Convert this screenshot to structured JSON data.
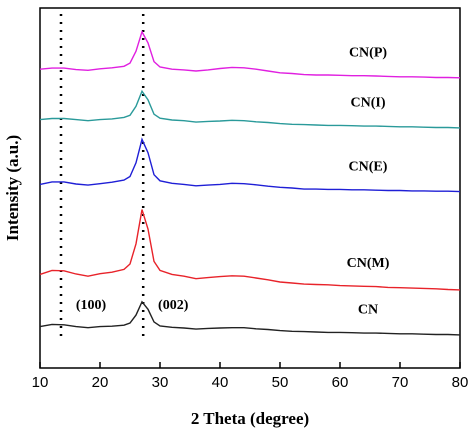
{
  "chart_data": {
    "type": "line",
    "xlabel": "2 Theta (degree)",
    "ylabel": "Intensity (a.u.)",
    "xlim": [
      10,
      80
    ],
    "xticks": [
      10,
      20,
      30,
      40,
      50,
      60,
      70,
      80
    ],
    "ylim": [
      0,
      100
    ],
    "x": [
      10,
      12,
      14,
      16,
      18,
      20,
      22,
      24,
      25,
      26,
      27,
      28,
      29,
      30,
      32,
      34,
      36,
      38,
      40,
      42,
      44,
      46,
      48,
      50,
      52,
      54,
      56,
      58,
      60,
      62,
      64,
      66,
      68,
      70,
      72,
      74,
      76,
      78,
      80
    ],
    "series": [
      {
        "name": "CN",
        "color": "#222222",
        "values": [
          11.5,
          12.1,
          12.0,
          11.5,
          11.2,
          11.5,
          11.6,
          11.9,
          12.5,
          14.7,
          18.4,
          16.3,
          12.8,
          11.7,
          11.3,
          11.1,
          10.8,
          11.0,
          11.1,
          11.2,
          11.2,
          10.9,
          10.7,
          10.4,
          10.2,
          10.1,
          10.0,
          9.9,
          9.9,
          9.8,
          9.7,
          9.7,
          9.6,
          9.5,
          9.5,
          9.4,
          9.3,
          9.3,
          9.2
        ]
      },
      {
        "name": "CN(M)",
        "color": "#e8232a",
        "values": [
          26.0,
          27.1,
          27.0,
          26.1,
          25.5,
          26.2,
          26.6,
          27.4,
          28.9,
          34.5,
          44.0,
          38.6,
          29.6,
          27.1,
          26.0,
          25.5,
          24.8,
          25.1,
          25.4,
          25.6,
          25.5,
          25.0,
          24.5,
          23.9,
          23.6,
          23.3,
          23.2,
          23.1,
          22.9,
          22.8,
          22.7,
          22.6,
          22.4,
          22.3,
          22.2,
          22.1,
          22.0,
          21.8,
          21.7
        ]
      },
      {
        "name": "CN(E)",
        "color": "#1f1fd6",
        "values": [
          51.0,
          51.7,
          51.7,
          51.1,
          50.8,
          51.2,
          51.6,
          52.2,
          53.2,
          57.0,
          63.5,
          59.8,
          53.7,
          52.0,
          51.3,
          51.0,
          50.6,
          50.8,
          51.0,
          51.3,
          51.2,
          50.9,
          50.5,
          50.2,
          50.0,
          49.7,
          49.7,
          49.6,
          49.6,
          49.5,
          49.5,
          49.4,
          49.3,
          49.3,
          49.2,
          49.2,
          49.1,
          49.1,
          49.0
        ]
      },
      {
        "name": "CN(I)",
        "color": "#2a9a9a",
        "values": [
          69.0,
          69.3,
          69.3,
          69.0,
          68.7,
          69.0,
          69.2,
          69.6,
          70.2,
          72.7,
          76.9,
          74.5,
          70.5,
          69.4,
          68.9,
          68.7,
          68.3,
          68.5,
          68.6,
          68.8,
          68.7,
          68.4,
          68.2,
          67.9,
          67.7,
          67.6,
          67.5,
          67.4,
          67.4,
          67.3,
          67.2,
          67.2,
          67.1,
          67.0,
          67.0,
          66.9,
          66.8,
          66.8,
          66.7
        ]
      },
      {
        "name": "CN(P)",
        "color": "#e020e0",
        "values": [
          83.0,
          83.3,
          83.3,
          82.9,
          82.7,
          83.1,
          83.4,
          83.8,
          84.7,
          88.0,
          93.4,
          90.3,
          85.1,
          83.6,
          83.0,
          82.8,
          82.5,
          82.8,
          83.2,
          83.5,
          83.4,
          83.0,
          82.5,
          82.0,
          81.8,
          81.5,
          81.4,
          81.4,
          81.3,
          81.2,
          81.2,
          81.1,
          81.0,
          80.9,
          80.9,
          80.8,
          80.7,
          80.7,
          80.6
        ]
      }
    ],
    "annotations": [
      {
        "text": "(100)",
        "x": 13.5
      },
      {
        "text": "(002)",
        "x": 27.2
      }
    ]
  }
}
